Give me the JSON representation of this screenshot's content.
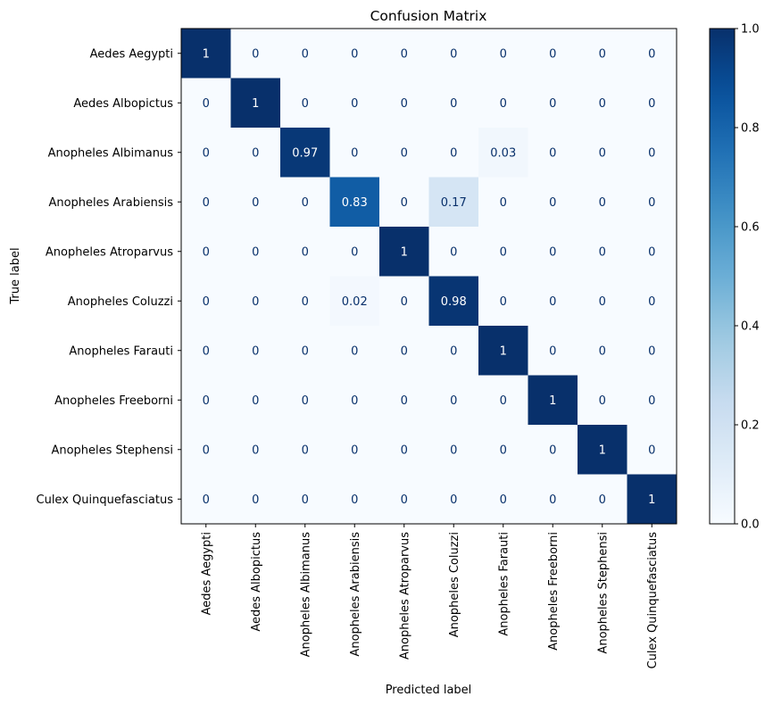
{
  "chart_data": {
    "type": "heatmap",
    "title": "Confusion Matrix",
    "xlabel": "Predicted label",
    "ylabel": "True label",
    "classes": [
      "Aedes Aegypti",
      "Aedes Albopictus",
      "Anopheles Albimanus",
      "Anopheles Arabiensis",
      "Anopheles Atroparvus",
      "Anopheles Coluzzi",
      "Anopheles Farauti",
      "Anopheles Freeborni",
      "Anopheles Stephensi",
      "Culex Quinquefasciatus"
    ],
    "matrix": [
      [
        1,
        0,
        0,
        0,
        0,
        0,
        0,
        0,
        0,
        0
      ],
      [
        0,
        1,
        0,
        0,
        0,
        0,
        0,
        0,
        0,
        0
      ],
      [
        0,
        0,
        0.97,
        0,
        0,
        0,
        0.03,
        0,
        0,
        0
      ],
      [
        0,
        0,
        0,
        0.83,
        0,
        0.17,
        0,
        0,
        0,
        0
      ],
      [
        0,
        0,
        0,
        0,
        1,
        0,
        0,
        0,
        0,
        0
      ],
      [
        0,
        0,
        0,
        0.02,
        0,
        0.98,
        0,
        0,
        0,
        0
      ],
      [
        0,
        0,
        0,
        0,
        0,
        0,
        1,
        0,
        0,
        0
      ],
      [
        0,
        0,
        0,
        0,
        0,
        0,
        0,
        1,
        0,
        0
      ],
      [
        0,
        0,
        0,
        0,
        0,
        0,
        0,
        0,
        1,
        0
      ],
      [
        0,
        0,
        0,
        0,
        0,
        0,
        0,
        0,
        0,
        1
      ]
    ],
    "colormap": "Blues",
    "color_range": [
      0.0,
      1.0
    ],
    "colorbar_ticks": [
      "0.0",
      "0.2",
      "0.4",
      "0.6",
      "0.8",
      "1.0"
    ],
    "colors": {
      "low": "#f7fbff",
      "high": "#08306b",
      "text_dark": "#08306b",
      "text_light": "#ffffff"
    },
    "grid": false
  }
}
